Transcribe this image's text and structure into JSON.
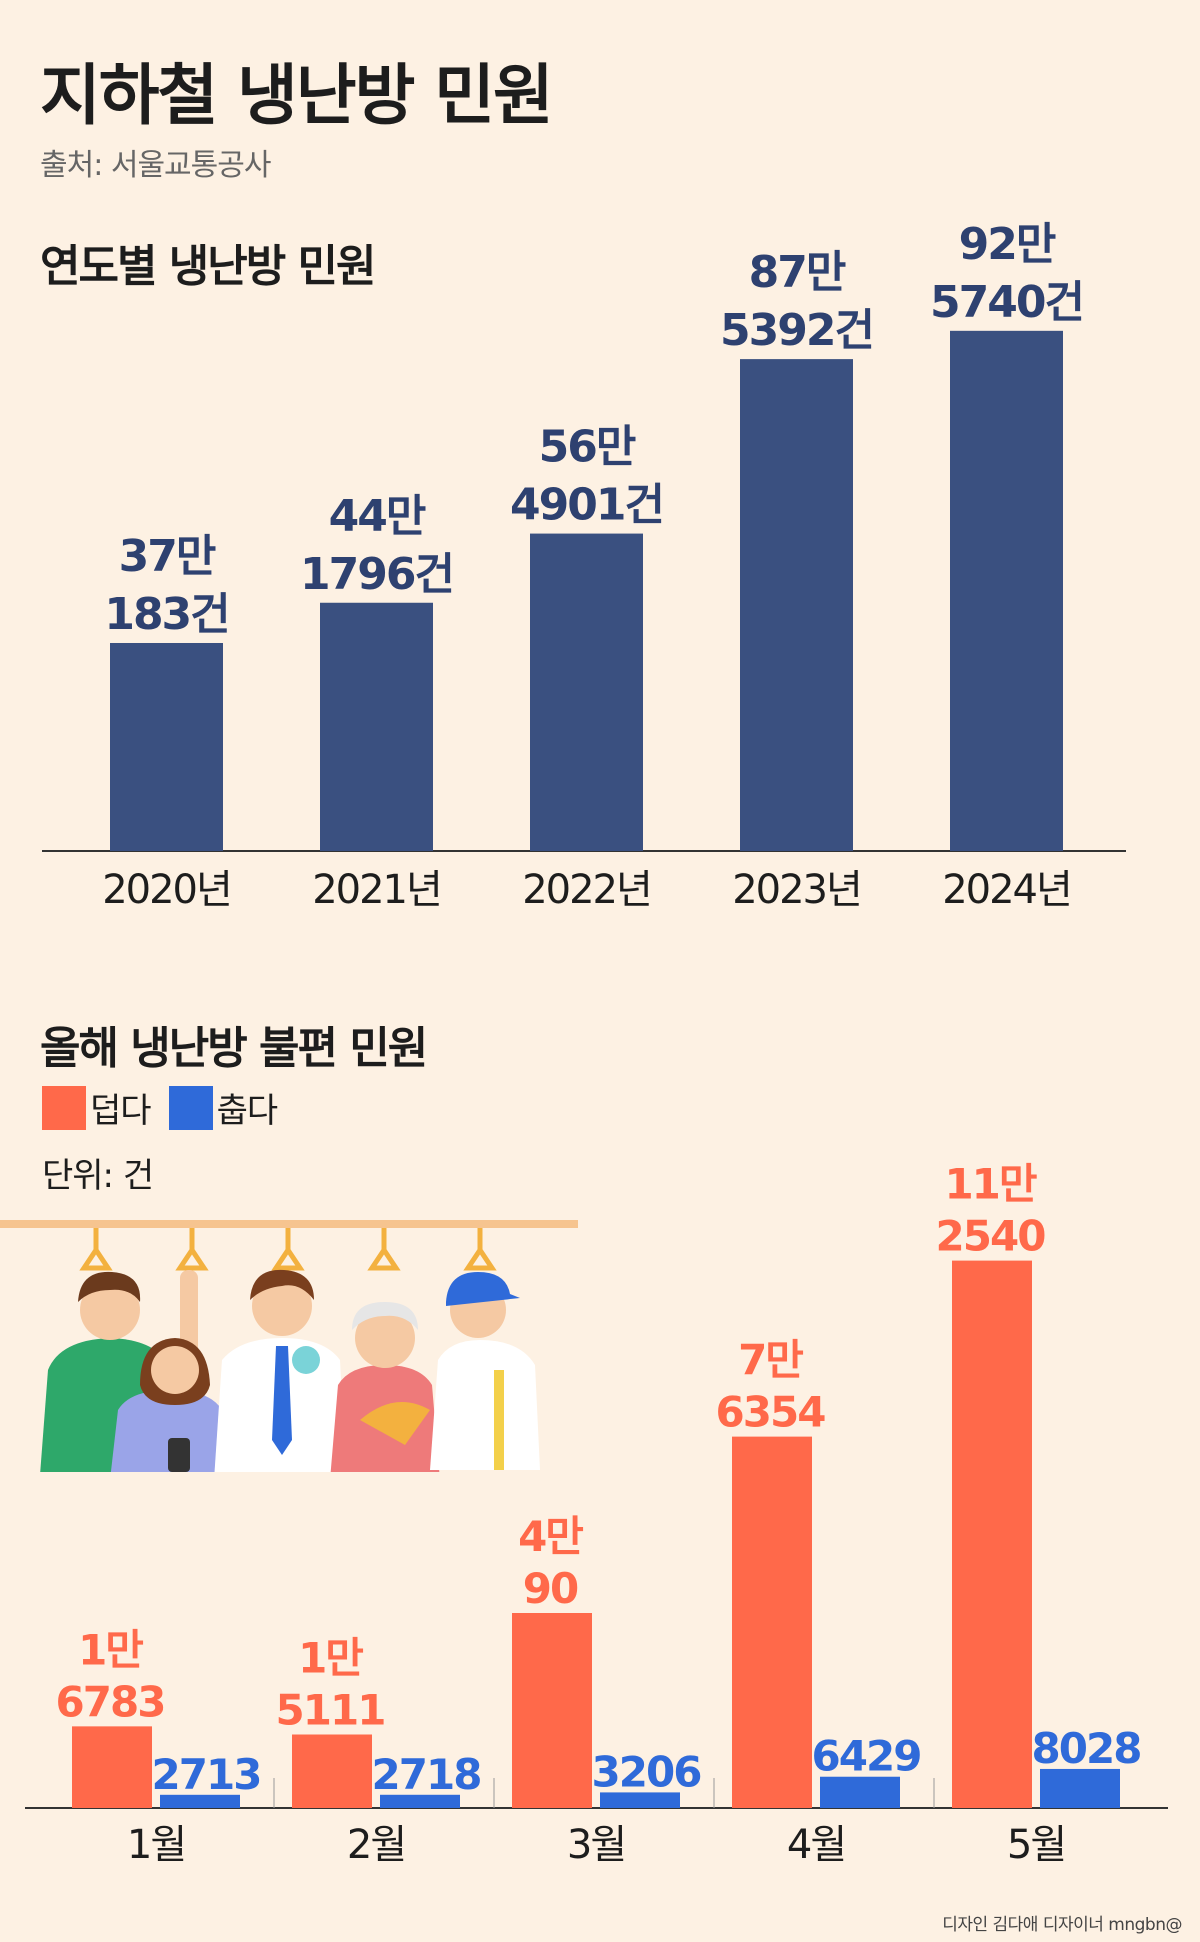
{
  "title": "지하철 냉난방 민원",
  "source": "출처: 서울교통공사",
  "credit": "디자인 김다애 디자이너 mngbn@",
  "colors": {
    "background": "#fdf1e3",
    "annual_bar": "#3a5080",
    "annual_label": "#2e4170",
    "hot": "#ff694a",
    "cold": "#2f6ad9",
    "rail": "#f6c48f",
    "handle": "#f3b13f"
  },
  "annual": {
    "section_title": "연도별 냉난방 민원"
  },
  "monthly": {
    "section_title": "올해 냉난방 불편 민원",
    "legend": [
      {
        "label": "덥다",
        "color": "#ff694a"
      },
      {
        "label": "춥다",
        "color": "#2f6ad9"
      }
    ],
    "unit": "단위: 건"
  },
  "illustration": {
    "name": "crowded-passengers",
    "description_icon": "passengers-holding-straps-icon"
  },
  "chart_data": [
    {
      "type": "bar",
      "title": "연도별 냉난방 민원",
      "categories": [
        "2020년",
        "2021년",
        "2022년",
        "2023년",
        "2024년"
      ],
      "values": [
        370183,
        441796,
        564901,
        875392,
        925740
      ],
      "labels": [
        [
          "37만",
          "183건"
        ],
        [
          "44만",
          "1796건"
        ],
        [
          "56만",
          "4901건"
        ],
        [
          "87만",
          "5392건"
        ],
        [
          "92만",
          "5740건"
        ]
      ],
      "ylim": [
        0,
        1050000
      ],
      "xlabel": "",
      "ylabel": ""
    },
    {
      "type": "bar",
      "title": "올해 냉난방 불편 민원",
      "categories": [
        "1월",
        "2월",
        "3월",
        "4월",
        "5월"
      ],
      "series": [
        {
          "name": "덥다",
          "values": [
            16783,
            15111,
            40090,
            76354,
            112540
          ],
          "labels": [
            [
              "1만",
              "6783"
            ],
            [
              "1만",
              "5111"
            ],
            [
              "4만",
              "90"
            ],
            [
              "7만",
              "6354"
            ],
            [
              "11만",
              "2540"
            ]
          ]
        },
        {
          "name": "춥다",
          "values": [
            2713,
            2718,
            3206,
            6429,
            8028
          ],
          "labels": [
            [
              "2713"
            ],
            [
              "2718"
            ],
            [
              "3206"
            ],
            [
              "6429"
            ],
            [
              "8028"
            ]
          ]
        }
      ],
      "ylim": [
        0,
        125000
      ],
      "xlabel": "",
      "ylabel": "단위: 건"
    }
  ]
}
